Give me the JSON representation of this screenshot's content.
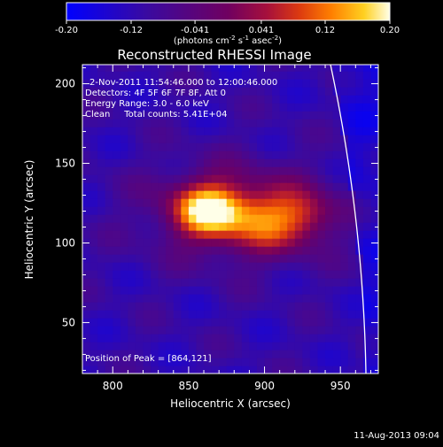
{
  "chart_data": {
    "type": "heatmap",
    "title": "Reconstructed RHESSI Image",
    "xlabel": "Heliocentric X (arcsec)",
    "ylabel": "Heliocentric Y (arcsec)",
    "xlim": [
      780,
      975
    ],
    "ylim": [
      18,
      212
    ],
    "x_ticks": [
      800,
      850,
      900,
      950
    ],
    "y_ticks": [
      50,
      100,
      150,
      200
    ],
    "colorbar": {
      "range": [
        -0.2,
        0.2
      ],
      "tick_labels": [
        "-0.20",
        "-0.12",
        "-0.041",
        "0.041",
        "0.12",
        "0.20"
      ],
      "unit_label": "(photons cm",
      "unit_exp1": "-2",
      "unit_mid": " s",
      "unit_exp2": "-1",
      "unit_mid2": " asec",
      "unit_exp3": "-2",
      "unit_close": ")"
    },
    "annotations": [
      "2-Nov-2011 11:54:46.000 to 12:00:46.000",
      "Detectors: 4F 5F 6F 7F 8F, Att 0",
      "Energy Range: 3.0 - 6.0 keV",
      "Clean     Total counts: 5.41E+04"
    ],
    "peak_label": "Position of Peak = [864,121]",
    "peak": [
      864,
      121
    ],
    "sources": [
      {
        "x": 862,
        "y": 121,
        "sx": 16,
        "sy": 12,
        "amp": 0.22
      },
      {
        "x": 905,
        "y": 115,
        "sx": 24,
        "sy": 14,
        "amp": 0.15
      },
      {
        "x": 880,
        "y": 120,
        "sx": 42,
        "sy": 22,
        "amp": 0.1
      },
      {
        "x": 930,
        "y": 118,
        "sx": 12,
        "sy": 10,
        "amp": 0.05
      }
    ],
    "background_level": -0.11,
    "limb": {
      "center": [
        0,
        0
      ],
      "radius": 967
    }
  },
  "footer": {
    "timestamp": "11-Aug-2013 09:04"
  }
}
